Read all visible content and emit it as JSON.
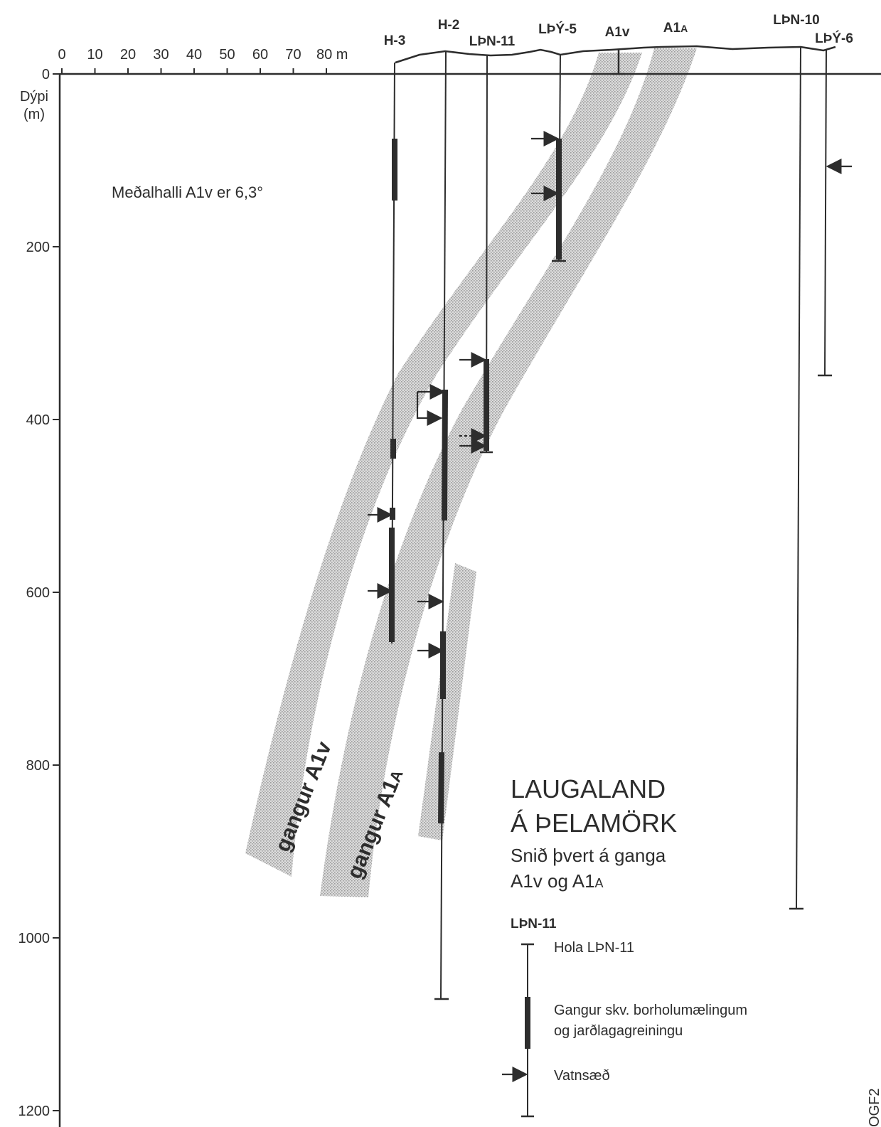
{
  "figure": {
    "title_line1": "LAUGALAND",
    "title_line2": "Á ÞELAMÖRK",
    "subtitle_line1": "Snið þvert á ganga",
    "subtitle_line2_main": "A1v og A1",
    "subtitle_line2_sub": "A",
    "note": "Meðalhalli A1v er 6,3°",
    "corner_code": "OGF2"
  },
  "axes": {
    "x_ticks": [
      "0",
      "10",
      "20",
      "30",
      "40",
      "50",
      "60",
      "70",
      "80 m"
    ],
    "y_label_line1": "Dýpi",
    "y_label_line2": "(m)",
    "y_ticks": [
      "0",
      "200",
      "400",
      "600",
      "800",
      "1000",
      "1200"
    ]
  },
  "wells": [
    {
      "name": "H-3",
      "depth_m": 660
    },
    {
      "name": "H-2",
      "depth_m": 1070
    },
    {
      "name": "LÞN-11",
      "depth_m": 437
    },
    {
      "name": "LÞÝ-5",
      "depth_m": 218
    },
    {
      "name": "LÞN-10",
      "depth_m": 963
    },
    {
      "name": "LÞÝ-6",
      "depth_m": 348
    }
  ],
  "dykes": [
    {
      "name": "A1v",
      "main": "A1v",
      "sub": "",
      "rotated_label": "gangur A1v",
      "fill": "#c9c9c9"
    },
    {
      "name": "A1A",
      "main": "A1",
      "sub": "A",
      "rotated_label_main": "gangur A1",
      "rotated_label_sub": "A",
      "fill": "#c9c9c9"
    }
  ],
  "legend": {
    "title": "LÞN-11",
    "items": [
      {
        "symbol": "well-line",
        "label_line1": "Hola LÞN-11"
      },
      {
        "symbol": "dyke-bar",
        "label_line1": "Gangur skv. borholumælingum",
        "label_line2": "og jarðlagagreiningu"
      },
      {
        "symbol": "arrow",
        "label_line1": "Vatnsæð"
      }
    ]
  },
  "colors": {
    "ink": "#2d2d2d",
    "dyke_fill": "#c9c9c9",
    "background": "#ffffff"
  }
}
